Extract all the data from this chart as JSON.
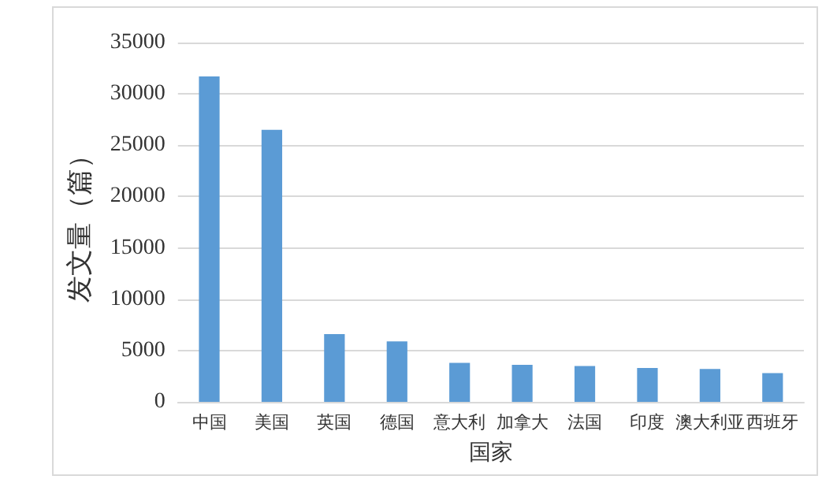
{
  "chart_data": {
    "type": "bar",
    "xlabel": "国家",
    "ylabel": "发文量（篇）",
    "categories": [
      "中国",
      "美国",
      "英国",
      "德国",
      "意大利",
      "加拿大",
      "法国",
      "印度",
      "澳大利亚",
      "西班牙"
    ],
    "values": [
      31700,
      26500,
      6600,
      5900,
      3800,
      3600,
      3500,
      3300,
      3200,
      2800
    ],
    "color": "#5b9bd5",
    "ylim": [
      0,
      35000
    ],
    "yticks": [
      0,
      5000,
      10000,
      15000,
      20000,
      25000,
      30000,
      35000
    ],
    "grid": "y"
  }
}
